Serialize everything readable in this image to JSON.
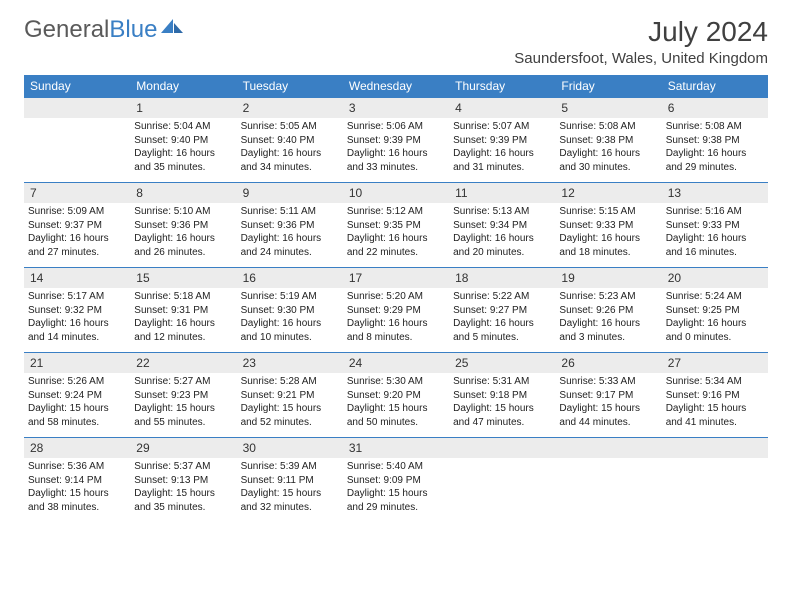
{
  "logo": {
    "text1": "General",
    "text2": "Blue"
  },
  "title": "July 2024",
  "location": "Saundersfoot, Wales, United Kingdom",
  "colors": {
    "header_bg": "#3a7fc4",
    "header_fg": "#ffffff",
    "daynum_bg": "#ececec",
    "border": "#3a7fc4",
    "text": "#222222",
    "logo_gray": "#5a5a5a",
    "logo_blue": "#3a7fc4"
  },
  "day_labels": [
    "Sunday",
    "Monday",
    "Tuesday",
    "Wednesday",
    "Thursday",
    "Friday",
    "Saturday"
  ],
  "start_offset": 1,
  "days": [
    {
      "n": 1,
      "sr": "5:04 AM",
      "ss": "9:40 PM",
      "dl": "16 hours and 35 minutes."
    },
    {
      "n": 2,
      "sr": "5:05 AM",
      "ss": "9:40 PM",
      "dl": "16 hours and 34 minutes."
    },
    {
      "n": 3,
      "sr": "5:06 AM",
      "ss": "9:39 PM",
      "dl": "16 hours and 33 minutes."
    },
    {
      "n": 4,
      "sr": "5:07 AM",
      "ss": "9:39 PM",
      "dl": "16 hours and 31 minutes."
    },
    {
      "n": 5,
      "sr": "5:08 AM",
      "ss": "9:38 PM",
      "dl": "16 hours and 30 minutes."
    },
    {
      "n": 6,
      "sr": "5:08 AM",
      "ss": "9:38 PM",
      "dl": "16 hours and 29 minutes."
    },
    {
      "n": 7,
      "sr": "5:09 AM",
      "ss": "9:37 PM",
      "dl": "16 hours and 27 minutes."
    },
    {
      "n": 8,
      "sr": "5:10 AM",
      "ss": "9:36 PM",
      "dl": "16 hours and 26 minutes."
    },
    {
      "n": 9,
      "sr": "5:11 AM",
      "ss": "9:36 PM",
      "dl": "16 hours and 24 minutes."
    },
    {
      "n": 10,
      "sr": "5:12 AM",
      "ss": "9:35 PM",
      "dl": "16 hours and 22 minutes."
    },
    {
      "n": 11,
      "sr": "5:13 AM",
      "ss": "9:34 PM",
      "dl": "16 hours and 20 minutes."
    },
    {
      "n": 12,
      "sr": "5:15 AM",
      "ss": "9:33 PM",
      "dl": "16 hours and 18 minutes."
    },
    {
      "n": 13,
      "sr": "5:16 AM",
      "ss": "9:33 PM",
      "dl": "16 hours and 16 minutes."
    },
    {
      "n": 14,
      "sr": "5:17 AM",
      "ss": "9:32 PM",
      "dl": "16 hours and 14 minutes."
    },
    {
      "n": 15,
      "sr": "5:18 AM",
      "ss": "9:31 PM",
      "dl": "16 hours and 12 minutes."
    },
    {
      "n": 16,
      "sr": "5:19 AM",
      "ss": "9:30 PM",
      "dl": "16 hours and 10 minutes."
    },
    {
      "n": 17,
      "sr": "5:20 AM",
      "ss": "9:29 PM",
      "dl": "16 hours and 8 minutes."
    },
    {
      "n": 18,
      "sr": "5:22 AM",
      "ss": "9:27 PM",
      "dl": "16 hours and 5 minutes."
    },
    {
      "n": 19,
      "sr": "5:23 AM",
      "ss": "9:26 PM",
      "dl": "16 hours and 3 minutes."
    },
    {
      "n": 20,
      "sr": "5:24 AM",
      "ss": "9:25 PM",
      "dl": "16 hours and 0 minutes."
    },
    {
      "n": 21,
      "sr": "5:26 AM",
      "ss": "9:24 PM",
      "dl": "15 hours and 58 minutes."
    },
    {
      "n": 22,
      "sr": "5:27 AM",
      "ss": "9:23 PM",
      "dl": "15 hours and 55 minutes."
    },
    {
      "n": 23,
      "sr": "5:28 AM",
      "ss": "9:21 PM",
      "dl": "15 hours and 52 minutes."
    },
    {
      "n": 24,
      "sr": "5:30 AM",
      "ss": "9:20 PM",
      "dl": "15 hours and 50 minutes."
    },
    {
      "n": 25,
      "sr": "5:31 AM",
      "ss": "9:18 PM",
      "dl": "15 hours and 47 minutes."
    },
    {
      "n": 26,
      "sr": "5:33 AM",
      "ss": "9:17 PM",
      "dl": "15 hours and 44 minutes."
    },
    {
      "n": 27,
      "sr": "5:34 AM",
      "ss": "9:16 PM",
      "dl": "15 hours and 41 minutes."
    },
    {
      "n": 28,
      "sr": "5:36 AM",
      "ss": "9:14 PM",
      "dl": "15 hours and 38 minutes."
    },
    {
      "n": 29,
      "sr": "5:37 AM",
      "ss": "9:13 PM",
      "dl": "15 hours and 35 minutes."
    },
    {
      "n": 30,
      "sr": "5:39 AM",
      "ss": "9:11 PM",
      "dl": "15 hours and 32 minutes."
    },
    {
      "n": 31,
      "sr": "5:40 AM",
      "ss": "9:09 PM",
      "dl": "15 hours and 29 minutes."
    }
  ],
  "labels": {
    "sunrise": "Sunrise:",
    "sunset": "Sunset:",
    "daylight": "Daylight:"
  }
}
